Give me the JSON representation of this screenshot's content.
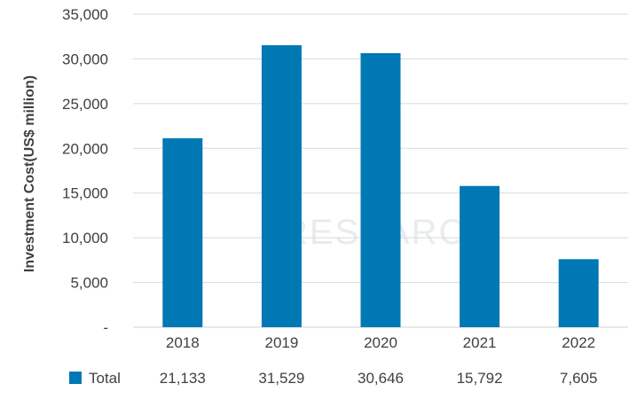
{
  "chart_data": {
    "type": "bar",
    "categories": [
      "2018",
      "2019",
      "2020",
      "2021",
      "2022"
    ],
    "series": [
      {
        "name": "Total",
        "values": [
          21133,
          31529,
          30646,
          15792,
          7605
        ],
        "color": "#0078b4"
      }
    ],
    "value_labels": [
      "21,133",
      "31,529",
      "30,646",
      "15,792",
      "7,605"
    ],
    "ylabel": "Investment Cost(US$ million)",
    "xlabel": "",
    "ylim": [
      0,
      35000
    ],
    "yticks": [
      0,
      5000,
      10000,
      15000,
      20000,
      25000,
      30000,
      35000
    ],
    "ytick_labels": [
      "-",
      "5,000",
      "10,000",
      "15,000",
      "20,000",
      "25,000",
      "30,000",
      "35,000"
    ],
    "grid": true,
    "legend": "data table below chart",
    "watermark": "RESEARCH",
    "gridline_color": "#d9d9d9"
  }
}
